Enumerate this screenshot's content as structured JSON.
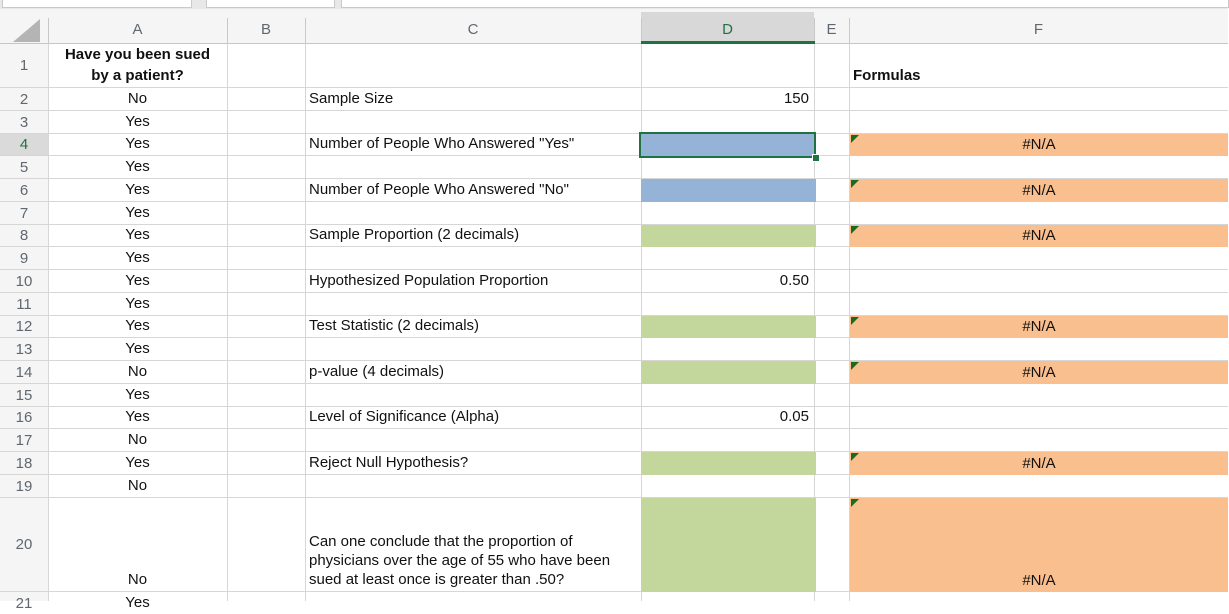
{
  "sheet": {
    "columns": [
      "A",
      "B",
      "C",
      "D",
      "E",
      "F"
    ],
    "selected_cell": "D4",
    "rows": [
      {
        "num": "1",
        "a": "Have you been sued by a patient?",
        "f": "Formulas"
      },
      {
        "num": "2",
        "a": "No",
        "c": "Sample Size",
        "d": "150"
      },
      {
        "num": "3",
        "a": "Yes"
      },
      {
        "num": "4",
        "a": "Yes",
        "c": "Number of People Who Answered \"Yes\"",
        "d": "",
        "d_fill": "blue",
        "selected": true,
        "f": "#N/A",
        "f_fill": "orange"
      },
      {
        "num": "5",
        "a": "Yes"
      },
      {
        "num": "6",
        "a": "Yes",
        "c": "Number of People Who Answered \"No\"",
        "d": "",
        "d_fill": "blue",
        "f": "#N/A",
        "f_fill": "orange"
      },
      {
        "num": "7",
        "a": "Yes"
      },
      {
        "num": "8",
        "a": "Yes",
        "c": "Sample Proportion (2 decimals)",
        "d": "",
        "d_fill": "green",
        "f": "#N/A",
        "f_fill": "orange"
      },
      {
        "num": "9",
        "a": "Yes"
      },
      {
        "num": "10",
        "a": "Yes",
        "c": "Hypothesized Population Proportion",
        "d": "0.50"
      },
      {
        "num": "11",
        "a": "Yes"
      },
      {
        "num": "12",
        "a": "Yes",
        "c": "Test Statistic (2 decimals)",
        "d": "",
        "d_fill": "green",
        "f": "#N/A",
        "f_fill": "orange"
      },
      {
        "num": "13",
        "a": "Yes"
      },
      {
        "num": "14",
        "a": "No",
        "c": "p-value (4 decimals)",
        "d": "",
        "d_fill": "green",
        "f": "#N/A",
        "f_fill": "orange"
      },
      {
        "num": "15",
        "a": "Yes"
      },
      {
        "num": "16",
        "a": "Yes",
        "c": "Level of Significance (Alpha)",
        "d": "0.05"
      },
      {
        "num": "17",
        "a": "No"
      },
      {
        "num": "18",
        "a": "Yes",
        "c": "Reject Null Hypothesis?",
        "d": "",
        "d_fill": "green",
        "f": "#N/A",
        "f_fill": "orange"
      },
      {
        "num": "19",
        "a": "No"
      },
      {
        "num": "20",
        "a": "No",
        "c": "Can one conclude that the proportion of physicians over the age of 55 who have been sued at least once is greater than .50?",
        "d": "",
        "d_fill": "green",
        "f": "#N/A",
        "f_fill": "orange"
      },
      {
        "num": "21",
        "a": "Yes"
      }
    ]
  },
  "colors": {
    "fill_blue": "#95B3D7",
    "fill_green": "#C3D69B",
    "fill_orange": "#FABF8F",
    "selection_green": "#1F7244",
    "error_indicator_green": "#1C6B1C",
    "gridline": "#D6D6D6",
    "header_bg": "#F5F5F5",
    "header_selected_bg": "#D8D8D8",
    "header_text": "#60676F"
  }
}
